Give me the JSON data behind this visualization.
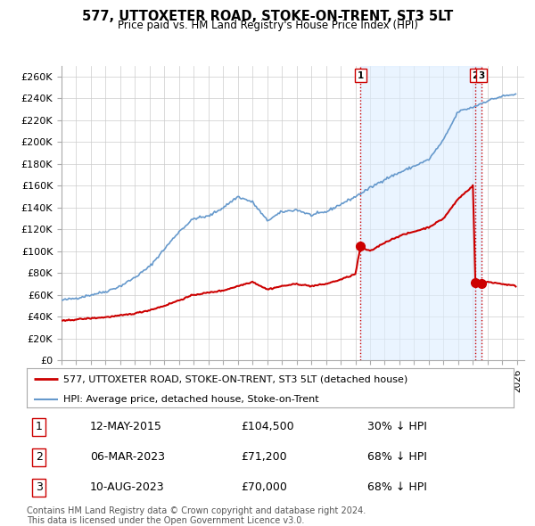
{
  "title": "577, UTTOXETER ROAD, STOKE-ON-TRENT, ST3 5LT",
  "subtitle": "Price paid vs. HM Land Registry's House Price Index (HPI)",
  "ylabel_ticks": [
    "£0",
    "£20K",
    "£40K",
    "£60K",
    "£80K",
    "£100K",
    "£120K",
    "£140K",
    "£160K",
    "£180K",
    "£200K",
    "£220K",
    "£240K",
    "£260K"
  ],
  "ytick_values": [
    0,
    20000,
    40000,
    60000,
    80000,
    100000,
    120000,
    140000,
    160000,
    180000,
    200000,
    220000,
    240000,
    260000
  ],
  "ylim": [
    0,
    270000
  ],
  "xlim_start": 1995.0,
  "xlim_end": 2026.5,
  "hpi_color": "#6699cc",
  "price_color": "#cc0000",
  "marker_color": "#cc0000",
  "vline_color": "#cc0000",
  "background_color": "#ffffff",
  "grid_color": "#cccccc",
  "transactions": [
    {
      "date_num": 2015.36,
      "price": 104500,
      "label": "1"
    },
    {
      "date_num": 2023.17,
      "price": 71200,
      "label": "2"
    },
    {
      "date_num": 2023.6,
      "price": 70000,
      "label": "3"
    }
  ],
  "legend_entries": [
    {
      "label": "577, UTTOXETER ROAD, STOKE-ON-TRENT, ST3 5LT (detached house)",
      "color": "#cc0000",
      "lw": 2
    },
    {
      "label": "HPI: Average price, detached house, Stoke-on-Trent",
      "color": "#6699cc",
      "lw": 1.5
    }
  ],
  "table_rows": [
    {
      "num": "1",
      "date": "12-MAY-2015",
      "price": "£104,500",
      "change": "30% ↓ HPI"
    },
    {
      "num": "2",
      "date": "06-MAR-2023",
      "price": "£71,200",
      "change": "68% ↓ HPI"
    },
    {
      "num": "3",
      "date": "10-AUG-2023",
      "price": "£70,000",
      "change": "68% ↓ HPI"
    }
  ],
  "footnote": "Contains HM Land Registry data © Crown copyright and database right 2024.\nThis data is licensed under the Open Government Licence v3.0.",
  "shade_regions": [
    {
      "x_start": 2015.36,
      "x_end": 2023.17
    },
    {
      "x_start": 2023.17,
      "x_end": 2023.6
    }
  ]
}
